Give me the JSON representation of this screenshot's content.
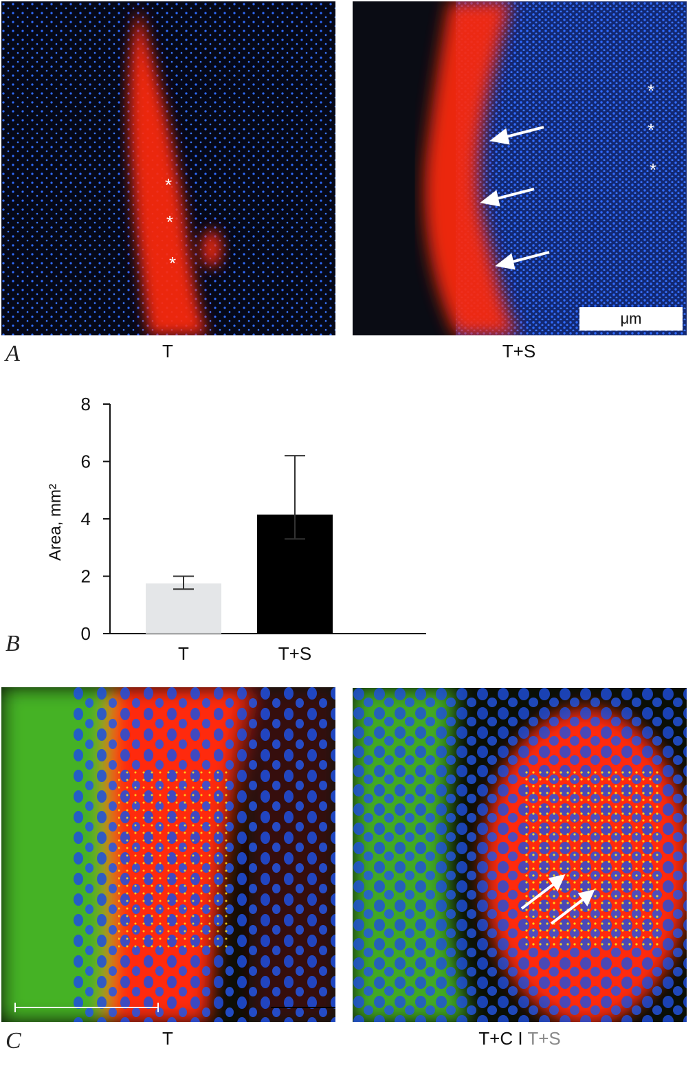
{
  "panels": {
    "A": {
      "letter": "A",
      "left_caption": "T",
      "right_caption": "T+S",
      "scale_label": "μm",
      "left_markers": [
        "*",
        "*",
        "*"
      ],
      "right_markers": [
        "*",
        "*",
        "*"
      ],
      "palette": {
        "background": "#050818",
        "nuclei": "#2f6bff",
        "stain": "#ff2a10",
        "marker": "#ffffff"
      }
    },
    "B": {
      "letter": "B"
    },
    "C": {
      "letter": "C",
      "left_caption": "T",
      "right_caption_main": "T+C",
      "right_caption_sep": "I",
      "right_caption_gray": "T+S",
      "palette": {
        "background": "#0a0f06",
        "nuclei": "#1e4fe0",
        "stain": "#ff2a0a",
        "glia": "#4fcf2a",
        "overlap": "#ffe81a"
      }
    }
  },
  "chart_data": {
    "type": "bar",
    "categories": [
      "T",
      "T+S"
    ],
    "values": [
      1.75,
      4.15
    ],
    "error": [
      [
        1.55,
        2.0
      ],
      [
        3.3,
        6.2
      ]
    ],
    "ylabel": "Area, mm²",
    "ylim": [
      0,
      8
    ],
    "yticks": [
      0,
      2,
      4,
      6,
      8
    ],
    "colors": [
      "#e4e6e8",
      "#000000"
    ],
    "grid": false
  }
}
